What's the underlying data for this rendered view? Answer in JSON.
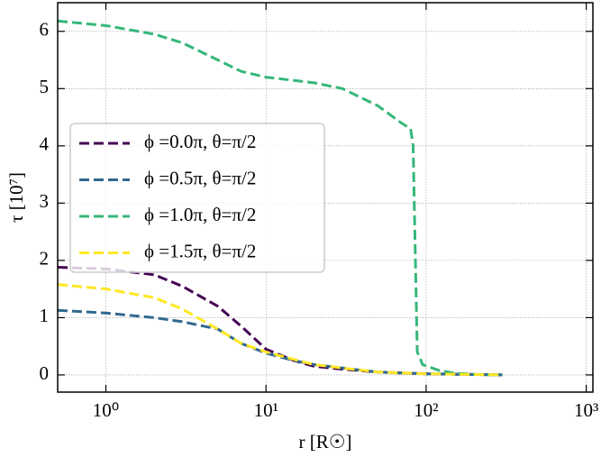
{
  "chart_data": {
    "type": "line",
    "xlabel": "r [R☉]",
    "ylabel": "τ [10⁷]",
    "xscale": "log",
    "grid": true,
    "legend": "center left",
    "xlim": [
      0.5,
      1100
    ],
    "ylim": [
      -0.3,
      6.5
    ],
    "xticks": [
      {
        "value": 1,
        "label": "10⁰"
      },
      {
        "value": 10,
        "label": "10¹"
      },
      {
        "value": 100,
        "label": "10²"
      },
      {
        "value": 1000,
        "label": "10³"
      }
    ],
    "yticks": [
      0,
      1,
      2,
      3,
      4,
      5,
      6
    ],
    "series": [
      {
        "name": "ϕ =0.0π, θ=π/2",
        "color": "#440154",
        "x": [
          0.5,
          1,
          2,
          3,
          5,
          7,
          10,
          15,
          20,
          30,
          50,
          100,
          300
        ],
        "values": [
          1.88,
          1.85,
          1.75,
          1.55,
          1.2,
          0.85,
          0.45,
          0.25,
          0.15,
          0.1,
          0.05,
          0.02,
          0.0
        ]
      },
      {
        "name": "ϕ =0.5π, θ=π/2",
        "color": "#31688e",
        "x": [
          0.5,
          1,
          2,
          3,
          5,
          7,
          10,
          15,
          20,
          30,
          50,
          100,
          300
        ],
        "values": [
          1.13,
          1.08,
          1.0,
          0.93,
          0.8,
          0.55,
          0.38,
          0.25,
          0.18,
          0.12,
          0.05,
          0.02,
          0.0
        ]
      },
      {
        "name": "ϕ =1.0π, θ=π/2",
        "color": "#35b779",
        "x": [
          0.5,
          1,
          2,
          3,
          5,
          7,
          10,
          20,
          30,
          50,
          70,
          80,
          83,
          85,
          88,
          95,
          120,
          150,
          200,
          300
        ],
        "values": [
          6.18,
          6.1,
          5.95,
          5.8,
          5.5,
          5.3,
          5.2,
          5.1,
          5.0,
          4.7,
          4.4,
          4.3,
          4.0,
          2.5,
          0.4,
          0.18,
          0.08,
          0.03,
          0.01,
          0.0
        ]
      },
      {
        "name": "ϕ =1.5π, θ=π/2",
        "color": "#fde725",
        "x": [
          0.5,
          1,
          2,
          3,
          5,
          7,
          10,
          15,
          20,
          30,
          50,
          100,
          300
        ],
        "values": [
          1.58,
          1.5,
          1.35,
          1.15,
          0.8,
          0.55,
          0.4,
          0.27,
          0.18,
          0.12,
          0.05,
          0.02,
          0.0
        ]
      }
    ]
  }
}
